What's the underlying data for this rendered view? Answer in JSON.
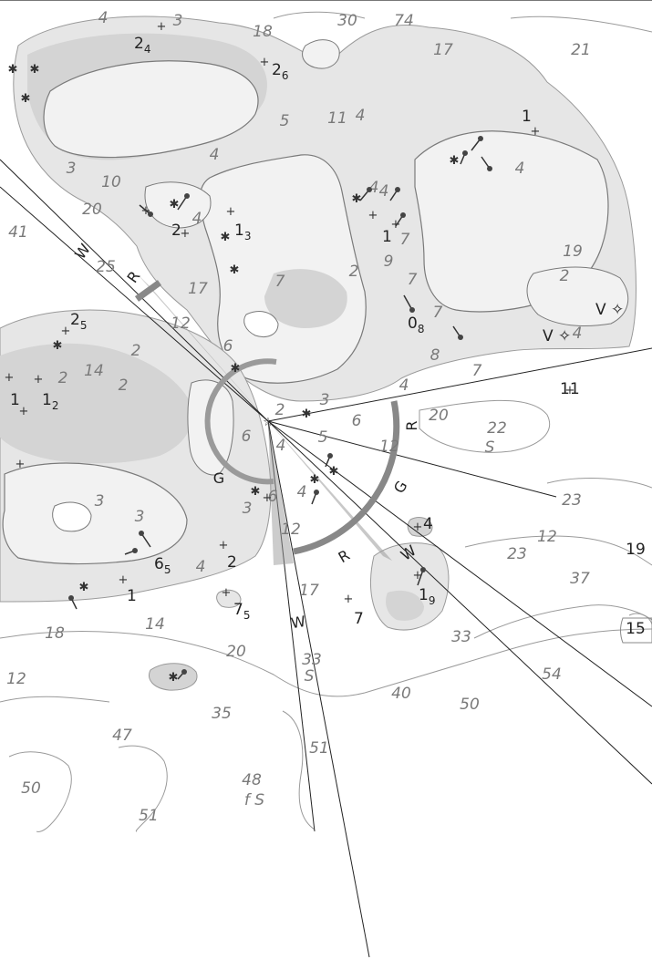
{
  "map": {
    "colors": {
      "land": "#f2f2f2",
      "shallow": "#d4d4d4",
      "deep_shade": "#e6e6e6",
      "coast": "#7a7a7a",
      "sector_arc": "#9a9a9a",
      "water": "#ffffff"
    },
    "soundings": [
      {
        "id": "s1",
        "text": "4"
      },
      {
        "id": "s2",
        "text": "3"
      },
      {
        "id": "s3",
        "text": "18"
      },
      {
        "id": "s4",
        "text": "30"
      },
      {
        "id": "s5",
        "text": "74"
      },
      {
        "id": "s6",
        "text": "17"
      },
      {
        "id": "s7",
        "text": "21"
      },
      {
        "id": "s8",
        "text": "5"
      },
      {
        "id": "s9",
        "text": "11"
      },
      {
        "id": "s10",
        "text": "4"
      },
      {
        "id": "s11",
        "text": "4"
      },
      {
        "id": "s12",
        "text": "3"
      },
      {
        "id": "s13",
        "text": "10"
      },
      {
        "id": "s14",
        "text": "20"
      },
      {
        "id": "s15",
        "text": "41"
      },
      {
        "id": "s16",
        "text": "25"
      },
      {
        "id": "s17",
        "text": "4"
      },
      {
        "id": "s18",
        "text": "17"
      },
      {
        "id": "s19",
        "text": "7"
      },
      {
        "id": "s20",
        "text": "2"
      },
      {
        "id": "s21",
        "text": "4"
      },
      {
        "id": "s22",
        "text": "9"
      },
      {
        "id": "s23",
        "text": "7"
      },
      {
        "id": "s24",
        "text": "19"
      },
      {
        "id": "s25",
        "text": "2"
      },
      {
        "id": "s26",
        "text": "12"
      },
      {
        "id": "s27",
        "text": "6"
      },
      {
        "id": "s28",
        "text": "7"
      },
      {
        "id": "s29",
        "text": "8"
      },
      {
        "id": "s30",
        "text": "7"
      },
      {
        "id": "s31",
        "text": "4"
      },
      {
        "id": "s32",
        "text": "2"
      },
      {
        "id": "s33",
        "text": "14"
      },
      {
        "id": "s34",
        "text": "2"
      },
      {
        "id": "s35",
        "text": "2"
      },
      {
        "id": "s36",
        "text": "2"
      },
      {
        "id": "s37",
        "text": "3"
      },
      {
        "id": "s38",
        "text": "6"
      },
      {
        "id": "s39",
        "text": "6"
      },
      {
        "id": "s40",
        "text": "4"
      },
      {
        "id": "s41",
        "text": "5"
      },
      {
        "id": "s42",
        "text": "12"
      },
      {
        "id": "s43",
        "text": "20"
      },
      {
        "id": "s44",
        "text": "22"
      },
      {
        "id": "s45",
        "text": "4"
      },
      {
        "id": "s46",
        "text": "6"
      },
      {
        "id": "s47",
        "text": "4"
      },
      {
        "id": "s48",
        "text": "3"
      },
      {
        "id": "s49",
        "text": "3"
      },
      {
        "id": "s50",
        "text": "3"
      },
      {
        "id": "s51",
        "text": "12"
      },
      {
        "id": "s52",
        "text": "4"
      },
      {
        "id": "s53",
        "text": "23"
      },
      {
        "id": "s54",
        "text": "12"
      },
      {
        "id": "s55",
        "text": "23"
      },
      {
        "id": "s56",
        "text": "37"
      },
      {
        "id": "s57",
        "text": "17"
      },
      {
        "id": "s58",
        "text": "14"
      },
      {
        "id": "s59",
        "text": "18"
      },
      {
        "id": "s60",
        "text": "20"
      },
      {
        "id": "s61",
        "text": "33"
      },
      {
        "id": "s62",
        "text": "12"
      },
      {
        "id": "s63",
        "text": "33"
      },
      {
        "id": "s64",
        "text": "54"
      },
      {
        "id": "s65",
        "text": "40"
      },
      {
        "id": "s66",
        "text": "50"
      },
      {
        "id": "s67",
        "text": "35"
      },
      {
        "id": "s68",
        "text": "47"
      },
      {
        "id": "s69",
        "text": "51"
      },
      {
        "id": "s70",
        "text": "50"
      },
      {
        "id": "s71",
        "text": "48"
      },
      {
        "id": "s72",
        "text": "51"
      },
      {
        "id": "s73",
        "text": "4"
      },
      {
        "id": "s74",
        "text": "7"
      },
      {
        "id": "s75",
        "text": "4"
      }
    ],
    "heights": [
      {
        "id": "h1",
        "main": "2",
        "sub": "4"
      },
      {
        "id": "h2",
        "main": "2",
        "sub": "6"
      },
      {
        "id": "h3",
        "main": "1",
        "sub": ""
      },
      {
        "id": "h4",
        "main": "1",
        "sub": "3"
      },
      {
        "id": "h5",
        "main": "2",
        "sub": ""
      },
      {
        "id": "h6",
        "main": "1",
        "sub": ""
      },
      {
        "id": "h7",
        "main": "0",
        "sub": "8"
      },
      {
        "id": "h8",
        "main": "2",
        "sub": "5"
      },
      {
        "id": "h9",
        "main": "1",
        "sub": ""
      },
      {
        "id": "h10",
        "main": "1",
        "sub": "2"
      },
      {
        "id": "h11",
        "main": "6",
        "sub": "5"
      },
      {
        "id": "h12",
        "main": "2",
        "sub": ""
      },
      {
        "id": "h13",
        "main": "4",
        "sub": ""
      },
      {
        "id": "h14",
        "main": "1",
        "sub": ""
      },
      {
        "id": "h15",
        "main": "7",
        "sub": "5"
      },
      {
        "id": "h16",
        "main": "7",
        "sub": ""
      },
      {
        "id": "h17",
        "main": "1",
        "sub": "9"
      },
      {
        "id": "h18",
        "main": "11",
        "sub": ""
      }
    ],
    "sector_letters": [
      {
        "id": "w1",
        "text": "W"
      },
      {
        "id": "r1",
        "text": "R"
      },
      {
        "id": "r2",
        "text": "R"
      },
      {
        "id": "g1",
        "text": "G"
      },
      {
        "id": "r3",
        "text": "R"
      },
      {
        "id": "w2",
        "text": "W"
      },
      {
        "id": "w3",
        "text": "W"
      },
      {
        "id": "g2",
        "text": "G"
      }
    ],
    "seabed_labels": [
      {
        "id": "b1",
        "text": "S"
      },
      {
        "id": "b2",
        "text": "S"
      },
      {
        "id": "b3",
        "text": "f S"
      }
    ],
    "beacon_labels": [
      {
        "id": "v1",
        "text": "V"
      },
      {
        "id": "v2",
        "text": "V"
      }
    ],
    "box_labels": [
      {
        "id": "x1",
        "text": "19"
      },
      {
        "id": "x2",
        "text": "15"
      }
    ],
    "symbols": {
      "rock": "✱",
      "plus": "+",
      "light": "☆",
      "beacon": "✧"
    }
  }
}
